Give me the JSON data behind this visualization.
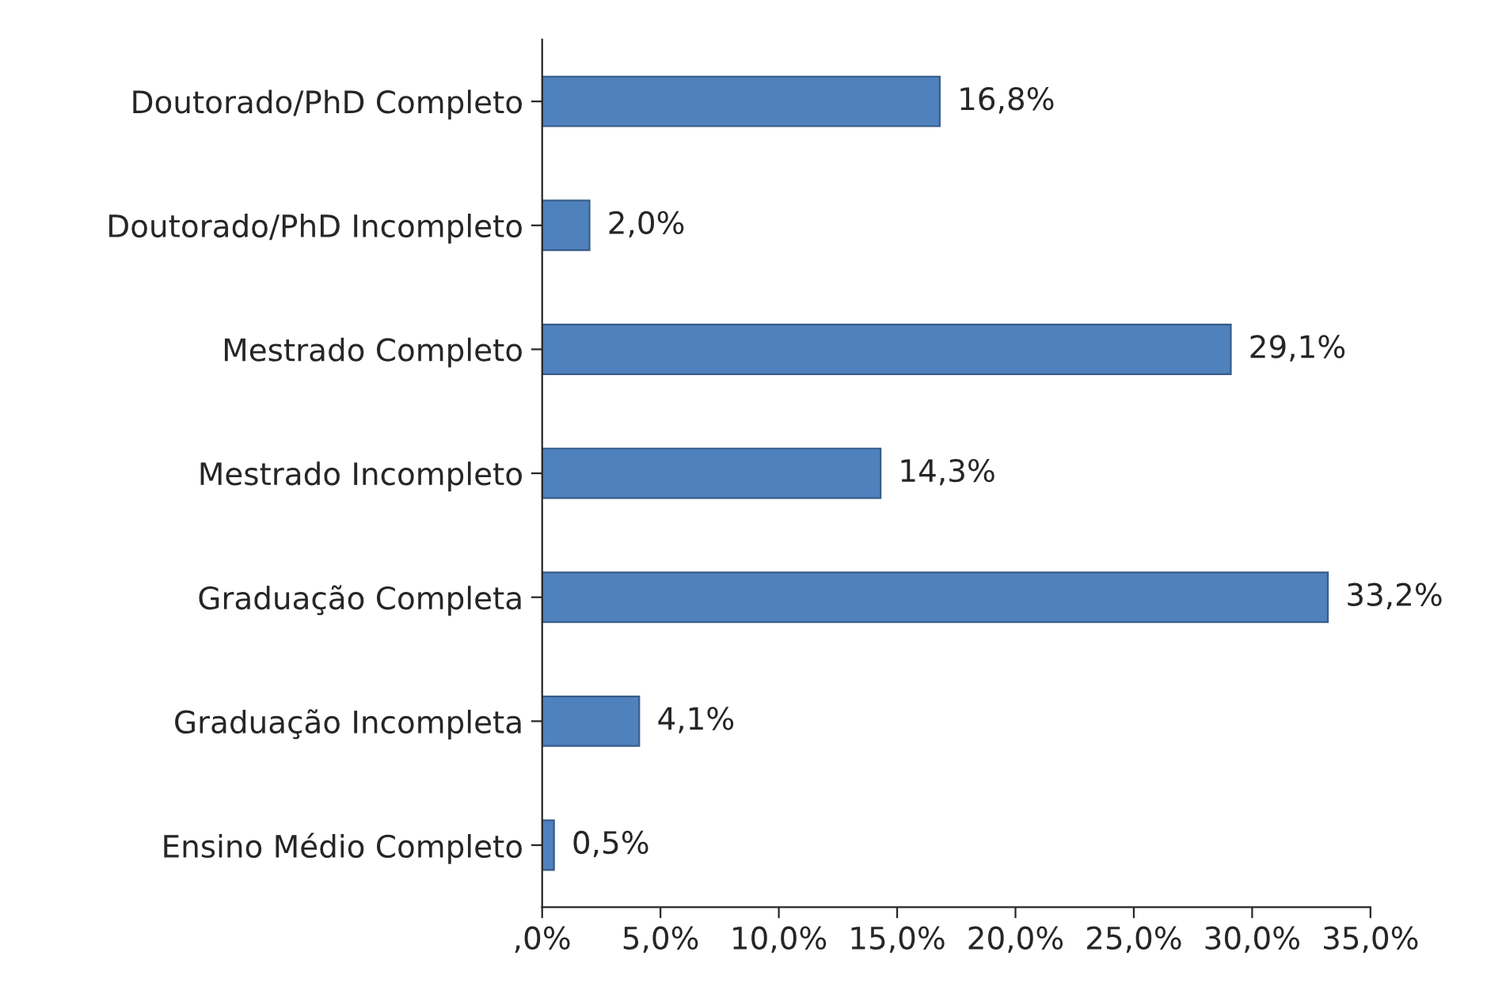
{
  "chart_data": {
    "type": "bar",
    "orientation": "horizontal",
    "categories": [
      "Doutorado/PhD Completo",
      "Doutorado/PhD Incompleto",
      "Mestrado Completo",
      "Mestrado Incompleto",
      "Graduação Completa",
      "Graduação Incompleta",
      "Ensino Médio Completo"
    ],
    "values": [
      16.8,
      2.0,
      29.1,
      14.3,
      33.2,
      4.1,
      0.5
    ],
    "value_labels": [
      "16,8%",
      "2,0%",
      "29,1%",
      "14,3%",
      "33,2%",
      "4,1%",
      "0,5%"
    ],
    "color": "#4f81bd",
    "xlim": [
      0,
      35
    ],
    "xticks": [
      {
        "value": 0,
        "label": ",0%"
      },
      {
        "value": 5,
        "label": "5,0%"
      },
      {
        "value": 10,
        "label": "10,0%"
      },
      {
        "value": 15,
        "label": "15,0%"
      },
      {
        "value": 20,
        "label": "20,0%"
      },
      {
        "value": 25,
        "label": "25,0%"
      },
      {
        "value": 30,
        "label": "30,0%"
      },
      {
        "value": 35,
        "label": "35,0%"
      }
    ],
    "grid": false,
    "legend": false
  }
}
